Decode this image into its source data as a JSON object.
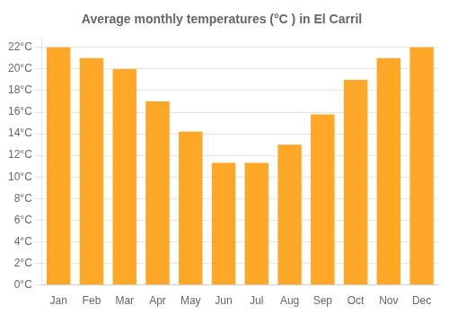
{
  "chart_data": {
    "type": "bar",
    "title": "Average monthly temperatures (°C ) in El Carril",
    "categories": [
      "Jan",
      "Feb",
      "Mar",
      "Apr",
      "May",
      "Jun",
      "Jul",
      "Aug",
      "Sep",
      "Oct",
      "Nov",
      "Dec"
    ],
    "values": [
      22,
      21,
      20,
      17,
      14.2,
      11.3,
      11.3,
      13,
      15.8,
      19,
      21,
      22
    ],
    "color": "#FFA726",
    "ylim": [
      0,
      23
    ],
    "yticks": [
      {
        "value": 0,
        "label": "0°C"
      },
      {
        "value": 2,
        "label": "2°C"
      },
      {
        "value": 4,
        "label": "4°C"
      },
      {
        "value": 6,
        "label": "6°C"
      },
      {
        "value": 8,
        "label": "8°C"
      },
      {
        "value": 10,
        "label": "10°C"
      },
      {
        "value": 12,
        "label": "12°C"
      },
      {
        "value": 14,
        "label": "14°C"
      },
      {
        "value": 16,
        "label": "16°C"
      },
      {
        "value": 18,
        "label": "18°C"
      },
      {
        "value": 20,
        "label": "20°C"
      },
      {
        "value": 22,
        "label": "22°C"
      }
    ],
    "grid": true
  }
}
